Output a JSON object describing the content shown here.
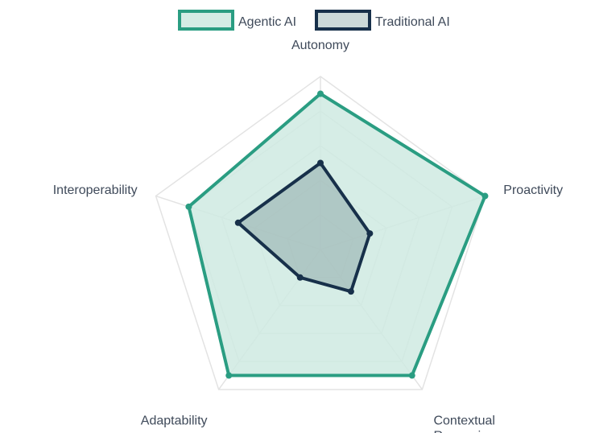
{
  "chart_data": {
    "type": "radar",
    "axes": [
      "Autonomy",
      "Proactivity",
      "Contextual Reasoning",
      "Adaptability",
      "Interoperability"
    ],
    "axis_label_lines": [
      [
        "Autonomy"
      ],
      [
        "Proactivity"
      ],
      [
        "Contextual",
        "Reasoning"
      ],
      [
        "Adaptability"
      ],
      [
        "Interoperability"
      ]
    ],
    "range": [
      0,
      10
    ],
    "grid_levels": 5,
    "legend_position": "top-center",
    "series": [
      {
        "name": "Agentic AI",
        "values": [
          9,
          10,
          9,
          9,
          8
        ],
        "stroke": "#2a9d82",
        "fill": "#cfeae2"
      },
      {
        "name": "Traditional AI",
        "values": [
          5,
          3,
          3,
          2,
          5
        ],
        "stroke": "#17304a",
        "fill": "#8faaaa"
      }
    ],
    "grid_color": "#e3e3e3"
  }
}
